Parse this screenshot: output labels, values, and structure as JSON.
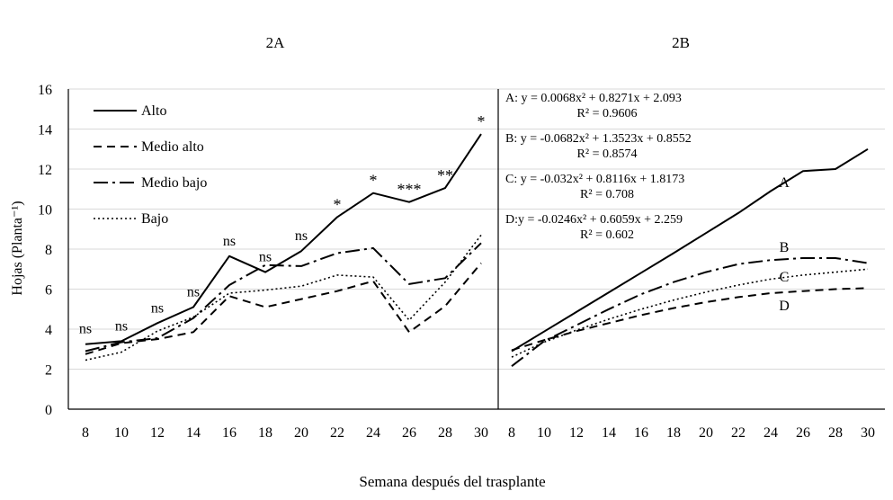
{
  "shared": {
    "ylabel": "Hojas (Planta⁻¹)",
    "xlabel": "Semana después del trasplante",
    "yticks": [
      0,
      2,
      4,
      6,
      8,
      10,
      12,
      14,
      16
    ],
    "ylim": [
      0,
      16
    ]
  },
  "chart_data": [
    {
      "panel": "2A",
      "type": "line",
      "title": "2A",
      "xlabel": "Semana después del trasplante",
      "ylabel": "Hojas (Planta⁻¹)",
      "ylim": [
        0,
        16
      ],
      "grid": true,
      "legend_position": "top-left",
      "categories": [
        8,
        10,
        12,
        14,
        16,
        18,
        20,
        22,
        24,
        26,
        28,
        30
      ],
      "series": [
        {
          "name": "Alto",
          "style": "solid",
          "values": [
            3.25,
            3.4,
            4.3,
            5.1,
            7.65,
            6.85,
            7.9,
            9.6,
            10.8,
            10.35,
            11.05,
            13.75
          ]
        },
        {
          "name": "Medio alto",
          "style": "dashed",
          "values": [
            2.75,
            3.3,
            3.5,
            3.85,
            5.65,
            5.1,
            5.5,
            5.9,
            6.4,
            3.85,
            5.15,
            7.3
          ]
        },
        {
          "name": "Medio bajo",
          "style": "dashdot",
          "values": [
            2.9,
            3.35,
            3.55,
            4.55,
            6.2,
            7.2,
            7.15,
            7.8,
            8.05,
            6.25,
            6.55,
            8.3
          ]
        },
        {
          "name": "Bajo",
          "style": "dotted",
          "values": [
            2.45,
            2.85,
            3.9,
            4.6,
            5.8,
            5.95,
            6.15,
            6.7,
            6.6,
            4.45,
            6.35,
            8.7
          ]
        }
      ],
      "annotations": [
        "ns",
        "ns",
        "ns",
        "ns",
        "ns",
        "ns",
        "ns",
        "*",
        "*",
        "***",
        "**",
        "*"
      ]
    },
    {
      "panel": "2B",
      "type": "line",
      "title": "2B",
      "xlabel": "Semana después del trasplante",
      "ylim": [
        0,
        16
      ],
      "grid": true,
      "categories": [
        8,
        10,
        12,
        14,
        16,
        18,
        20,
        22,
        24,
        26,
        28,
        30
      ],
      "series": [
        {
          "name": "A",
          "style": "solid",
          "values": [
            2.9,
            3.88,
            4.86,
            5.84,
            6.82,
            7.8,
            8.8,
            9.8,
            10.9,
            11.9,
            12.0,
            13.0
          ]
        },
        {
          "name": "B",
          "style": "dashdot",
          "values": [
            2.15,
            3.4,
            4.2,
            5.0,
            5.75,
            6.35,
            6.85,
            7.25,
            7.45,
            7.55,
            7.55,
            7.3
          ]
        },
        {
          "name": "C",
          "style": "dotted",
          "values": [
            2.6,
            3.35,
            3.95,
            4.5,
            5.0,
            5.45,
            5.85,
            6.2,
            6.5,
            6.7,
            6.85,
            7.0
          ]
        },
        {
          "name": "D",
          "style": "dashed",
          "values": [
            2.95,
            3.45,
            3.9,
            4.3,
            4.7,
            5.05,
            5.35,
            5.6,
            5.8,
            5.9,
            6.0,
            6.05
          ]
        }
      ],
      "equations": [
        {
          "eq": "A: y = 0.0068x² + 0.8271x + 2.093",
          "r2": "R² = 0.9606"
        },
        {
          "eq": "B: y = -0.0682x² + 1.3523x + 0.8552",
          "r2": "R² = 0.8574"
        },
        {
          "eq": "C: y = -0.032x² + 0.8116x + 1.8173",
          "r2": "R² = 0.708"
        },
        {
          "eq": "D:y = -0.0246x² + 0.6059x + 2.259",
          "r2": "R² = 0.602"
        }
      ]
    }
  ]
}
